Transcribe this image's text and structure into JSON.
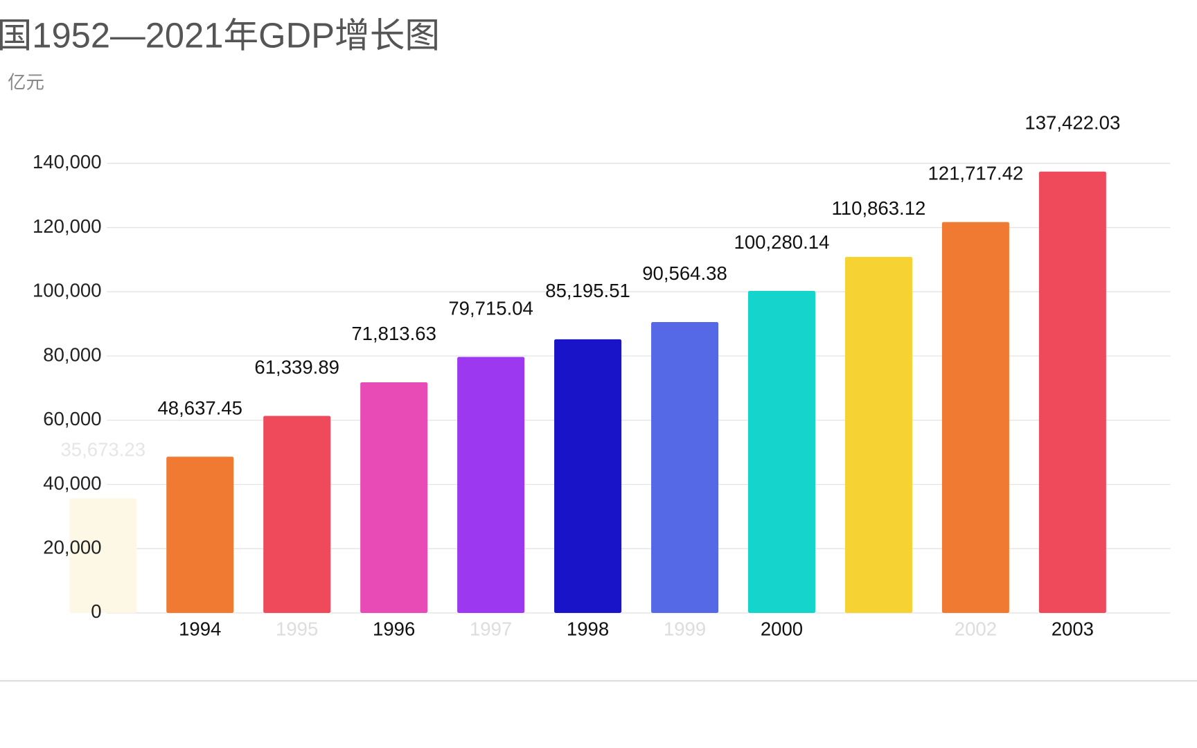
{
  "chart_data": {
    "type": "bar",
    "title": "国1952—2021年GDP增长图",
    "subtitle": "亿元",
    "categories": [
      null,
      "1994",
      "1995",
      "1996",
      "1997",
      "1998",
      "1999",
      "2000",
      null,
      "2002",
      "2003"
    ],
    "category_label_colors": [
      "#dddddd",
      "#111111",
      "#dddddd",
      "#111111",
      "#dddddd",
      "#111111",
      "#dddddd",
      "#111111",
      "#dddddd",
      "#dddddd",
      "#111111"
    ],
    "values": [
      35673.23,
      48637.45,
      61339.89,
      71813.63,
      79715.04,
      85195.51,
      90564.38,
      100280.14,
      110863.12,
      121717.42,
      137422.03
    ],
    "value_labels": [
      "35,673.23",
      "48,637.45",
      "61,339.89",
      "71,813.63",
      "79,715.04",
      "85,195.51",
      "90,564.38",
      "100,280.14",
      "110,863.12",
      "121,717.42",
      "137,422.03"
    ],
    "value_label_colors": [
      "#e6e6e6",
      "#111111",
      "#111111",
      "#111111",
      "#111111",
      "#111111",
      "#111111",
      "#111111",
      "#111111",
      "#111111",
      "#111111"
    ],
    "colors": [
      "#fdf8e6",
      "#f07a32",
      "#ee4a5c",
      "#e84bb5",
      "#9b38f0",
      "#1a14c8",
      "#5568e6",
      "#14d4cc",
      "#f6d232",
      "#f07a32",
      "#ee4a5c"
    ],
    "ylim": [
      0,
      140000
    ],
    "yticks": [
      {
        "value": 0,
        "label": "0"
      },
      {
        "value": 20000,
        "label": "20,000"
      },
      {
        "value": 40000,
        "label": "40,000"
      },
      {
        "value": 60000,
        "label": "60,000"
      },
      {
        "value": 80000,
        "label": "80,000"
      },
      {
        "value": 100000,
        "label": "100,000"
      },
      {
        "value": 120000,
        "label": "120,000"
      },
      {
        "value": 140000,
        "label": "140,000"
      }
    ],
    "grid": true
  }
}
